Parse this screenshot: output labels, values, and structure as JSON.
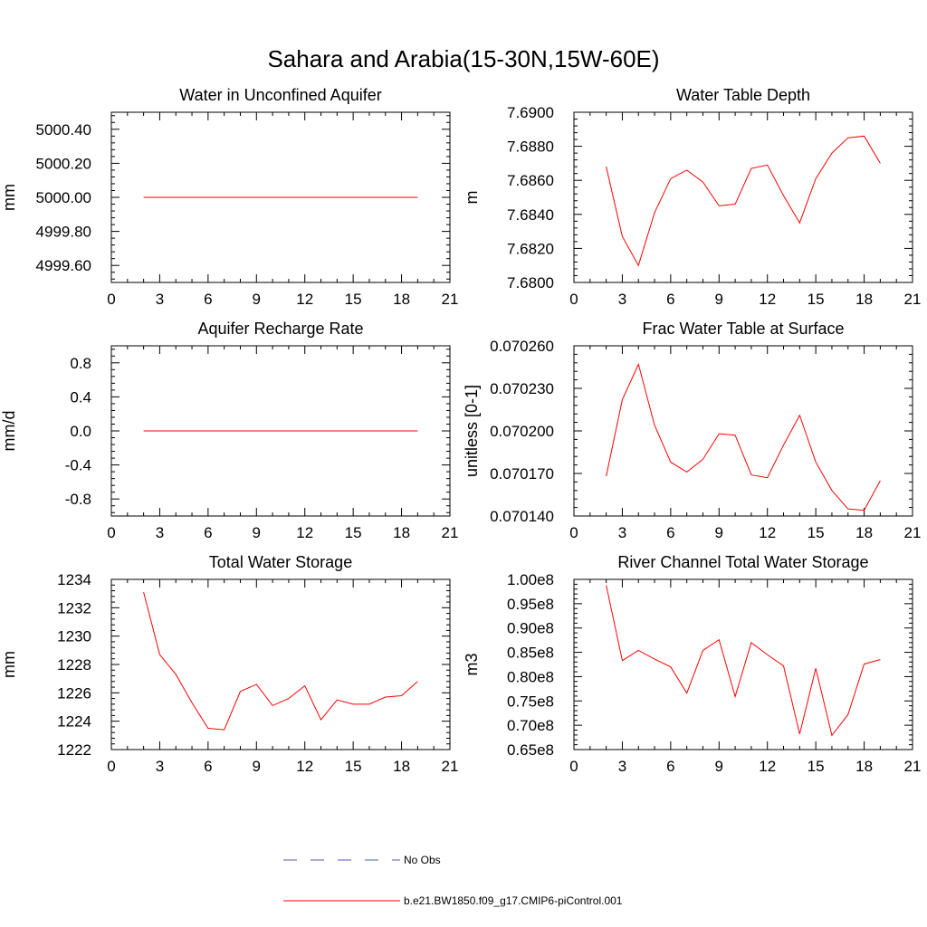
{
  "figure": {
    "title": "Sahara and Arabia(15-30N,15W-60E)",
    "colors": {
      "model": "#ff0000",
      "obs": "#4a5ea8",
      "axis": "#000000"
    },
    "legend": {
      "obs_label": "No Obs",
      "model_label": "b.e21.BW1850.f09_g17.CMIP6-piControl.001"
    }
  },
  "chart_data": [
    {
      "type": "line",
      "title": "Water in Unconfined Aquifer",
      "ylabel": "mm",
      "xlim": [
        0,
        21
      ],
      "ylim": [
        4999.5,
        5000.5
      ],
      "xticks": [
        0,
        3,
        6,
        9,
        12,
        15,
        18,
        21
      ],
      "yticks": [
        4999.6,
        4999.8,
        5000.0,
        5000.2,
        5000.4
      ],
      "ytick_labels": [
        "4999.60",
        "4999.80",
        "5000.00",
        "5000.20",
        "5000.40"
      ],
      "x": [
        2,
        3,
        4,
        5,
        6,
        7,
        8,
        9,
        10,
        11,
        12,
        13,
        14,
        15,
        16,
        17,
        18,
        19
      ],
      "series": [
        {
          "name": "b.e21.BW1850.f09_g17.CMIP6-piControl.001",
          "values": [
            5000,
            5000,
            5000,
            5000,
            5000,
            5000,
            5000,
            5000,
            5000,
            5000,
            5000,
            5000,
            5000,
            5000,
            5000,
            5000,
            5000,
            5000
          ]
        }
      ]
    },
    {
      "type": "line",
      "title": "Water Table Depth",
      "ylabel": "m",
      "xlim": [
        0,
        21
      ],
      "ylim": [
        7.68,
        7.69
      ],
      "xticks": [
        0,
        3,
        6,
        9,
        12,
        15,
        18,
        21
      ],
      "yticks": [
        7.68,
        7.682,
        7.684,
        7.686,
        7.688,
        7.69
      ],
      "ytick_labels": [
        "7.6800",
        "7.6820",
        "7.6840",
        "7.6860",
        "7.6880",
        "7.6900"
      ],
      "x": [
        2,
        3,
        4,
        5,
        6,
        7,
        8,
        9,
        10,
        11,
        12,
        13,
        14,
        15,
        16,
        17,
        18,
        19
      ],
      "series": [
        {
          "name": "b.e21.BW1850.f09_g17.CMIP6-piControl.001",
          "values": [
            7.6868,
            7.6827,
            7.681,
            7.6841,
            7.6861,
            7.6866,
            7.6859,
            7.6845,
            7.6846,
            7.6867,
            7.6869,
            7.6851,
            7.6835,
            7.6861,
            7.6876,
            7.6885,
            7.6886,
            7.687
          ]
        }
      ]
    },
    {
      "type": "line",
      "title": "Aquifer Recharge Rate",
      "ylabel": "mm/d",
      "xlim": [
        0,
        21
      ],
      "ylim": [
        -1,
        1
      ],
      "xticks": [
        0,
        3,
        6,
        9,
        12,
        15,
        18,
        21
      ],
      "yticks": [
        -0.8,
        -0.4,
        0,
        0.4,
        0.8
      ],
      "ytick_labels": [
        "-0.8",
        "-0.4",
        "0.0",
        "0.4",
        "0.8"
      ],
      "x": [
        2,
        3,
        4,
        5,
        6,
        7,
        8,
        9,
        10,
        11,
        12,
        13,
        14,
        15,
        16,
        17,
        18,
        19
      ],
      "series": [
        {
          "name": "b.e21.BW1850.f09_g17.CMIP6-piControl.001",
          "values": [
            0,
            0,
            0,
            0,
            0,
            0,
            0,
            0,
            0,
            0,
            0,
            0,
            0,
            0,
            0,
            0,
            0,
            0
          ]
        }
      ]
    },
    {
      "type": "line",
      "title": "Frac Water Table at Surface",
      "ylabel": "unitless [0-1]",
      "xlim": [
        0,
        21
      ],
      "ylim": [
        0.07014,
        0.07026
      ],
      "xticks": [
        0,
        3,
        6,
        9,
        12,
        15,
        18,
        21
      ],
      "yticks": [
        0.07014,
        0.07017,
        0.0702,
        0.07023,
        0.07026
      ],
      "ytick_labels": [
        "0.070140",
        "0.070170",
        "0.070200",
        "0.070230",
        "0.070260"
      ],
      "x": [
        2,
        3,
        4,
        5,
        6,
        7,
        8,
        9,
        10,
        11,
        12,
        13,
        14,
        15,
        16,
        17,
        18,
        19
      ],
      "series": [
        {
          "name": "b.e21.BW1850.f09_g17.CMIP6-piControl.001",
          "values": [
            0.070168,
            0.070222,
            0.070247,
            0.070204,
            0.070178,
            0.070171,
            0.07018,
            0.070198,
            0.070197,
            0.070169,
            0.070167,
            0.07019,
            0.070211,
            0.070178,
            0.070158,
            0.070145,
            0.070144,
            0.070165
          ]
        }
      ]
    },
    {
      "type": "line",
      "title": "Total Water Storage",
      "ylabel": "mm",
      "xlim": [
        0,
        21
      ],
      "ylim": [
        1222,
        1234
      ],
      "xticks": [
        0,
        3,
        6,
        9,
        12,
        15,
        18,
        21
      ],
      "yticks": [
        1222,
        1224,
        1226,
        1228,
        1230,
        1232,
        1234
      ],
      "ytick_labels": [
        "1222",
        "1224",
        "1226",
        "1228",
        "1230",
        "1232",
        "1234"
      ],
      "x": [
        2,
        3,
        4,
        5,
        6,
        7,
        8,
        9,
        10,
        11,
        12,
        13,
        14,
        15,
        16,
        17,
        18,
        19
      ],
      "series": [
        {
          "name": "b.e21.BW1850.f09_g17.CMIP6-piControl.001",
          "values": [
            1233.1,
            1228.7,
            1227.3,
            1225.3,
            1223.5,
            1223.4,
            1226.1,
            1226.6,
            1225.1,
            1225.6,
            1226.5,
            1224.1,
            1225.5,
            1225.2,
            1225.2,
            1225.7,
            1225.8,
            1226.8
          ]
        }
      ]
    },
    {
      "type": "line",
      "title": "River Channel Total Water Storage",
      "ylabel": "m3",
      "xlim": [
        0,
        21
      ],
      "ylim": [
        65000000.0,
        100000000.0
      ],
      "xticks": [
        0,
        3,
        6,
        9,
        12,
        15,
        18,
        21
      ],
      "yticks": [
        65000000.0,
        70000000.0,
        75000000.0,
        80000000.0,
        85000000.0,
        90000000.0,
        95000000.0,
        100000000.0
      ],
      "ytick_labels": [
        "0.65e8",
        "0.70e8",
        "0.75e8",
        "0.80e8",
        "0.85e8",
        "0.90e8",
        "0.95e8",
        "1.00e8"
      ],
      "x": [
        2,
        3,
        4,
        5,
        6,
        7,
        8,
        9,
        10,
        11,
        12,
        13,
        14,
        15,
        16,
        17,
        18,
        19
      ],
      "series": [
        {
          "name": "b.e21.BW1850.f09_g17.CMIP6-piControl.001",
          "values": [
            98800000.0,
            83300000.0,
            85400000.0,
            83600000.0,
            82000000.0,
            76600000.0,
            85400000.0,
            87600000.0,
            75900000.0,
            87000000.0,
            84500000.0,
            82200000.0,
            68200000.0,
            81700000.0,
            67900000.0,
            72200000.0,
            82600000.0,
            83500000.0
          ]
        }
      ]
    }
  ]
}
